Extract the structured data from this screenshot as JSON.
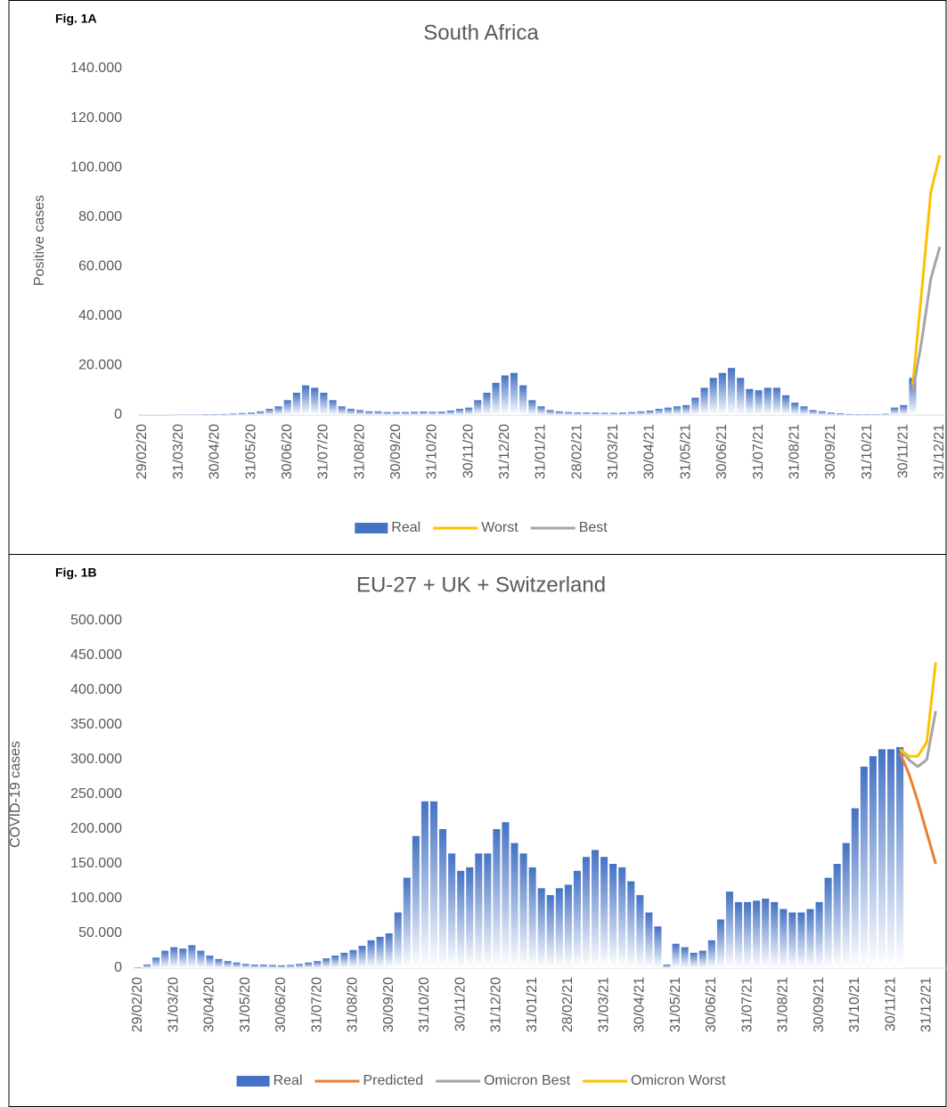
{
  "chart_data": [
    {
      "type": "combo",
      "fig_label": "Fig. 1A",
      "title": "South Africa",
      "y_label": "Positive cases",
      "categories": [
        "29/02/20",
        null,
        null,
        null,
        "31/03/20",
        null,
        null,
        null,
        "30/04/20",
        null,
        null,
        null,
        "31/05/20",
        null,
        null,
        null,
        "30/06/20",
        null,
        null,
        null,
        "31/07/20",
        null,
        null,
        null,
        "31/08/20",
        null,
        null,
        null,
        "30/09/20",
        null,
        null,
        null,
        "31/10/20",
        null,
        null,
        null,
        "30/11/20",
        null,
        null,
        null,
        "31/12/20",
        null,
        null,
        null,
        "31/01/21",
        null,
        null,
        null,
        "28/02/21",
        null,
        null,
        null,
        "31/03/21",
        null,
        null,
        null,
        "30/04/21",
        null,
        null,
        null,
        "31/05/21",
        null,
        null,
        null,
        "30/06/21",
        null,
        null,
        null,
        "31/07/21",
        null,
        null,
        null,
        "31/08/21",
        null,
        null,
        null,
        "30/09/21",
        null,
        null,
        null,
        "31/10/21",
        null,
        null,
        null,
        "30/11/21",
        null,
        null,
        null,
        "31/12/21"
      ],
      "ylim": [
        0,
        140000
      ],
      "yticks": [
        0,
        {
          "value": 20000,
          "label": "20.000"
        },
        {
          "value": 40000,
          "label": "40.000"
        },
        {
          "value": 60000,
          "label": "60.000"
        },
        {
          "value": 80000,
          "label": "80.000"
        },
        {
          "value": 100000,
          "label": "100.000"
        },
        {
          "value": 120000,
          "label": "120.000"
        },
        {
          "value": 140000,
          "label": "140.000"
        }
      ],
      "series": [
        {
          "name": "Real",
          "type": "bar",
          "color": "#4472c4",
          "values": [
            0,
            0,
            0,
            0,
            100,
            200,
            200,
            300,
            300,
            400,
            600,
            800,
            1000,
            1500,
            2500,
            3500,
            6000,
            9000,
            12000,
            11000,
            9000,
            6000,
            3500,
            2500,
            2000,
            1500,
            1500,
            1200,
            1200,
            1200,
            1300,
            1400,
            1300,
            1400,
            1800,
            2500,
            3000,
            6000,
            9000,
            13000,
            16000,
            17000,
            12000,
            6000,
            3500,
            2000,
            1500,
            1200,
            1000,
            1000,
            1000,
            900,
            900,
            1000,
            1200,
            1500,
            1800,
            2500,
            3000,
            3500,
            4000,
            7000,
            11000,
            15000,
            17000,
            19000,
            15000,
            10500,
            10000,
            11000,
            11000,
            8000,
            5000,
            3500,
            2000,
            1500,
            1000,
            700,
            400,
            300,
            300,
            300,
            500,
            3000,
            4000,
            15000,
            null,
            null,
            null
          ]
        },
        {
          "name": "Worst",
          "type": "line",
          "color": "#ffc000",
          "values": [
            null,
            null,
            null,
            null,
            null,
            null,
            null,
            null,
            null,
            null,
            null,
            null,
            null,
            null,
            null,
            null,
            null,
            null,
            null,
            null,
            null,
            null,
            null,
            null,
            null,
            null,
            null,
            null,
            null,
            null,
            null,
            null,
            null,
            null,
            null,
            null,
            null,
            null,
            null,
            null,
            null,
            null,
            null,
            null,
            null,
            null,
            null,
            null,
            null,
            null,
            null,
            null,
            null,
            null,
            null,
            null,
            null,
            null,
            null,
            null,
            null,
            null,
            null,
            null,
            null,
            null,
            null,
            null,
            null,
            null,
            null,
            null,
            null,
            null,
            null,
            null,
            null,
            null,
            null,
            null,
            null,
            null,
            null,
            null,
            null,
            12000,
            50000,
            90000,
            105000
          ]
        },
        {
          "name": "Best",
          "type": "line",
          "color": "#a5a5a5",
          "values": [
            null,
            null,
            null,
            null,
            null,
            null,
            null,
            null,
            null,
            null,
            null,
            null,
            null,
            null,
            null,
            null,
            null,
            null,
            null,
            null,
            null,
            null,
            null,
            null,
            null,
            null,
            null,
            null,
            null,
            null,
            null,
            null,
            null,
            null,
            null,
            null,
            null,
            null,
            null,
            null,
            null,
            null,
            null,
            null,
            null,
            null,
            null,
            null,
            null,
            null,
            null,
            null,
            null,
            null,
            null,
            null,
            null,
            null,
            null,
            null,
            null,
            null,
            null,
            null,
            null,
            null,
            null,
            null,
            null,
            null,
            null,
            null,
            null,
            null,
            null,
            null,
            null,
            null,
            null,
            null,
            null,
            null,
            null,
            null,
            null,
            9000,
            30000,
            55000,
            68000
          ]
        }
      ]
    },
    {
      "type": "combo",
      "fig_label": "Fig. 1B",
      "title": "EU-27 + UK + Switzerland",
      "y_label": "COVID-19 cases",
      "categories": [
        "29/02/20",
        null,
        null,
        null,
        "31/03/20",
        null,
        null,
        null,
        "30/04/20",
        null,
        null,
        null,
        "31/05/20",
        null,
        null,
        null,
        "30/06/20",
        null,
        null,
        null,
        "31/07/20",
        null,
        null,
        null,
        "31/08/20",
        null,
        null,
        null,
        "30/09/20",
        null,
        null,
        null,
        "31/10/20",
        null,
        null,
        null,
        "30/11/20",
        null,
        null,
        null,
        "31/12/20",
        null,
        null,
        null,
        "31/01/21",
        null,
        null,
        null,
        "28/02/21",
        null,
        null,
        null,
        "31/03/21",
        null,
        null,
        null,
        "30/04/21",
        null,
        null,
        null,
        "31/05/21",
        null,
        null,
        null,
        "30/06/21",
        null,
        null,
        null,
        "31/07/21",
        null,
        null,
        null,
        "31/08/21",
        null,
        null,
        null,
        "30/09/21",
        null,
        null,
        null,
        "31/10/21",
        null,
        null,
        null,
        "30/11/21",
        null,
        null,
        null,
        "31/12/21",
        null,
        null
      ],
      "ylim": [
        0,
        500000
      ],
      "yticks": [
        0,
        {
          "value": 50000,
          "label": "50.000"
        },
        {
          "value": 100000,
          "label": "100.000"
        },
        {
          "value": 150000,
          "label": "150.000"
        },
        {
          "value": 200000,
          "label": "200.000"
        },
        {
          "value": 250000,
          "label": "250.000"
        },
        {
          "value": 300000,
          "label": "300.000"
        },
        {
          "value": 350000,
          "label": "350.000"
        },
        {
          "value": 400000,
          "label": "400.000"
        },
        {
          "value": 450000,
          "label": "450.000"
        },
        {
          "value": 500000,
          "label": "500.000"
        }
      ],
      "series": [
        {
          "name": "Real",
          "type": "bar",
          "color": "#4472c4",
          "values": [
            1000,
            5000,
            15000,
            25000,
            30000,
            28000,
            33000,
            25000,
            18000,
            13000,
            10000,
            8000,
            6000,
            5000,
            5000,
            4500,
            4000,
            4500,
            6000,
            8000,
            10000,
            14000,
            18000,
            22000,
            26000,
            32000,
            40000,
            45000,
            50000,
            80000,
            130000,
            190000,
            240000,
            240000,
            200000,
            165000,
            140000,
            145000,
            165000,
            165000,
            200000,
            210000,
            180000,
            165000,
            145000,
            115000,
            105000,
            115000,
            120000,
            140000,
            160000,
            170000,
            160000,
            150000,
            145000,
            125000,
            105000,
            80000,
            60000,
            5000,
            35000,
            30000,
            22000,
            25000,
            40000,
            70000,
            110000,
            95000,
            95000,
            97000,
            100000,
            95000,
            85000,
            80000,
            80000,
            85000,
            95000,
            130000,
            150000,
            180000,
            230000,
            290000,
            305000,
            315000,
            315000,
            318000,
            null,
            null,
            null,
            null,
            null
          ]
        },
        {
          "name": "Predicted",
          "type": "line",
          "color": "#ed7d31",
          "values": [
            null,
            null,
            null,
            null,
            null,
            null,
            null,
            null,
            null,
            null,
            null,
            null,
            null,
            null,
            null,
            null,
            null,
            null,
            null,
            null,
            null,
            null,
            null,
            null,
            null,
            null,
            null,
            null,
            null,
            null,
            null,
            null,
            null,
            null,
            null,
            null,
            null,
            null,
            null,
            null,
            null,
            null,
            null,
            null,
            null,
            null,
            null,
            null,
            null,
            null,
            null,
            null,
            null,
            null,
            null,
            null,
            null,
            null,
            null,
            null,
            null,
            null,
            null,
            null,
            null,
            null,
            null,
            null,
            null,
            null,
            null,
            null,
            null,
            null,
            null,
            null,
            null,
            null,
            null,
            null,
            null,
            null,
            null,
            null,
            null,
            310000,
            280000,
            240000,
            195000,
            150000,
            null
          ]
        },
        {
          "name": "Omicron Best",
          "type": "line",
          "color": "#a5a5a5",
          "values": [
            null,
            null,
            null,
            null,
            null,
            null,
            null,
            null,
            null,
            null,
            null,
            null,
            null,
            null,
            null,
            null,
            null,
            null,
            null,
            null,
            null,
            null,
            null,
            null,
            null,
            null,
            null,
            null,
            null,
            null,
            null,
            null,
            null,
            null,
            null,
            null,
            null,
            null,
            null,
            null,
            null,
            null,
            null,
            null,
            null,
            null,
            null,
            null,
            null,
            null,
            null,
            null,
            null,
            null,
            null,
            null,
            null,
            null,
            null,
            null,
            null,
            null,
            null,
            null,
            null,
            null,
            null,
            null,
            null,
            null,
            null,
            null,
            null,
            null,
            null,
            null,
            null,
            null,
            null,
            null,
            null,
            null,
            null,
            null,
            null,
            315000,
            300000,
            290000,
            300000,
            370000,
            null
          ]
        },
        {
          "name": "Omicron Worst",
          "type": "line",
          "color": "#ffc000",
          "values": [
            null,
            null,
            null,
            null,
            null,
            null,
            null,
            null,
            null,
            null,
            null,
            null,
            null,
            null,
            null,
            null,
            null,
            null,
            null,
            null,
            null,
            null,
            null,
            null,
            null,
            null,
            null,
            null,
            null,
            null,
            null,
            null,
            null,
            null,
            null,
            null,
            null,
            null,
            null,
            null,
            null,
            null,
            null,
            null,
            null,
            null,
            null,
            null,
            null,
            null,
            null,
            null,
            null,
            null,
            null,
            null,
            null,
            null,
            null,
            null,
            null,
            null,
            null,
            null,
            null,
            null,
            null,
            null,
            null,
            null,
            null,
            null,
            null,
            null,
            null,
            null,
            null,
            null,
            null,
            null,
            null,
            null,
            null,
            null,
            null,
            315000,
            305000,
            305000,
            325000,
            440000,
            null
          ]
        }
      ]
    }
  ]
}
